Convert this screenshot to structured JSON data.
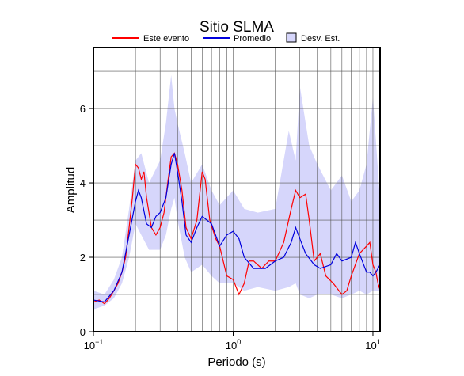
{
  "chart_data": {
    "type": "line",
    "title": "Sitio SLMA",
    "xlabel": "Periodo (s)",
    "ylabel": "Amplitud",
    "xscale": "log",
    "xlim": [
      0.1,
      11.25
    ],
    "ylim": [
      0,
      7.64
    ],
    "xticks": [
      {
        "value": 0.1,
        "label": "10",
        "exponent": "−1"
      },
      {
        "value": 1,
        "label": "10",
        "exponent": "0"
      },
      {
        "value": 10,
        "label": "10",
        "exponent": "1"
      }
    ],
    "xminor": [
      0.2,
      0.3,
      0.4,
      0.5,
      0.6,
      0.7,
      0.8,
      0.9,
      2,
      3,
      4,
      5,
      6,
      7,
      8,
      9
    ],
    "yticks": [
      0,
      2,
      4,
      6
    ],
    "yminor": [
      1,
      3,
      5,
      7
    ],
    "grid": true,
    "series": [
      {
        "name": "Desv. Est.",
        "color": "#d6d6fb",
        "kind": "band",
        "x": [
          0.1,
          0.12,
          0.14,
          0.16,
          0.18,
          0.2,
          0.22,
          0.25,
          0.3,
          0.33,
          0.36,
          0.38,
          0.4,
          0.45,
          0.5,
          0.6,
          0.7,
          0.8,
          1.0,
          1.2,
          1.5,
          2.0,
          2.5,
          2.8,
          3.0,
          3.5,
          4,
          5,
          6,
          7,
          8,
          9,
          10,
          11.25
        ],
        "high": [
          1.1,
          1.0,
          1.4,
          2.0,
          3.3,
          4.6,
          4.8,
          4.0,
          4.6,
          5.6,
          6.9,
          6.0,
          5.6,
          4.8,
          4.0,
          4.5,
          3.8,
          3.4,
          3.8,
          3.3,
          3.2,
          3.3,
          5.4,
          4.6,
          6.6,
          5.0,
          4.5,
          3.8,
          4.2,
          3.5,
          3.8,
          4.5,
          6.3,
          3.5
        ],
        "low": [
          0.6,
          0.7,
          0.9,
          1.3,
          2.0,
          2.9,
          2.6,
          2.2,
          2.2,
          2.6,
          3.3,
          3.6,
          3.0,
          2.0,
          1.6,
          1.8,
          1.5,
          1.3,
          1.3,
          1.1,
          1.2,
          1.1,
          1.2,
          1.3,
          1.0,
          0.9,
          1.0,
          1.0,
          0.9,
          1.0,
          1.1,
          1.0,
          1.1,
          1.1
        ]
      },
      {
        "name": "Este evento",
        "color": "#ff0000",
        "kind": "line",
        "x": [
          0.1,
          0.11,
          0.12,
          0.13,
          0.14,
          0.15,
          0.16,
          0.17,
          0.18,
          0.19,
          0.2,
          0.21,
          0.22,
          0.23,
          0.24,
          0.26,
          0.28,
          0.3,
          0.32,
          0.34,
          0.36,
          0.38,
          0.4,
          0.43,
          0.46,
          0.5,
          0.55,
          0.6,
          0.63,
          0.68,
          0.75,
          0.8,
          0.9,
          1.0,
          1.1,
          1.2,
          1.3,
          1.4,
          1.6,
          1.8,
          2.0,
          2.3,
          2.6,
          2.8,
          3.0,
          3.3,
          3.5,
          3.8,
          4.2,
          4.6,
          5.2,
          6,
          6.5,
          7,
          8,
          9,
          9.5,
          10,
          10.5,
          11,
          11.25
        ],
        "values": [
          0.8,
          0.85,
          0.75,
          0.9,
          1.1,
          1.3,
          1.6,
          2.0,
          2.8,
          3.6,
          4.5,
          4.4,
          4.1,
          4.3,
          3.6,
          2.8,
          2.6,
          2.8,
          3.2,
          4.0,
          4.7,
          4.8,
          4.5,
          3.8,
          2.8,
          2.5,
          3.0,
          4.3,
          4.1,
          3.0,
          2.5,
          2.3,
          1.5,
          1.4,
          1.0,
          1.3,
          1.9,
          1.9,
          1.7,
          1.9,
          1.9,
          2.4,
          3.3,
          3.8,
          3.6,
          3.7,
          3.0,
          1.9,
          2.1,
          1.5,
          1.3,
          1.0,
          1.1,
          1.5,
          2.1,
          2.3,
          2.4,
          1.8,
          1.6,
          1.2,
          1.3
        ]
      },
      {
        "name": "Promedio",
        "color": "#0000dd",
        "kind": "line",
        "x": [
          0.1,
          0.12,
          0.14,
          0.16,
          0.18,
          0.2,
          0.21,
          0.22,
          0.24,
          0.26,
          0.28,
          0.3,
          0.33,
          0.36,
          0.38,
          0.4,
          0.43,
          0.46,
          0.5,
          0.55,
          0.6,
          0.7,
          0.8,
          0.9,
          1.0,
          1.1,
          1.2,
          1.4,
          1.7,
          2.0,
          2.3,
          2.6,
          2.8,
          3.0,
          3.3,
          3.8,
          4.2,
          5.0,
          5.5,
          6,
          7,
          7.5,
          8,
          9,
          9.5,
          10,
          10.5,
          11.25
        ],
        "values": [
          0.85,
          0.8,
          1.1,
          1.6,
          2.6,
          3.5,
          3.8,
          3.6,
          2.9,
          2.8,
          3.1,
          3.2,
          3.6,
          4.5,
          4.8,
          4.3,
          3.5,
          2.6,
          2.4,
          2.8,
          3.1,
          2.9,
          2.3,
          2.6,
          2.7,
          2.5,
          2.0,
          1.7,
          1.7,
          1.9,
          2.0,
          2.4,
          2.8,
          2.5,
          2.1,
          1.8,
          1.7,
          1.8,
          2.1,
          1.9,
          2.0,
          2.4,
          2.1,
          1.6,
          1.6,
          1.5,
          1.6,
          1.8
        ]
      }
    ]
  }
}
